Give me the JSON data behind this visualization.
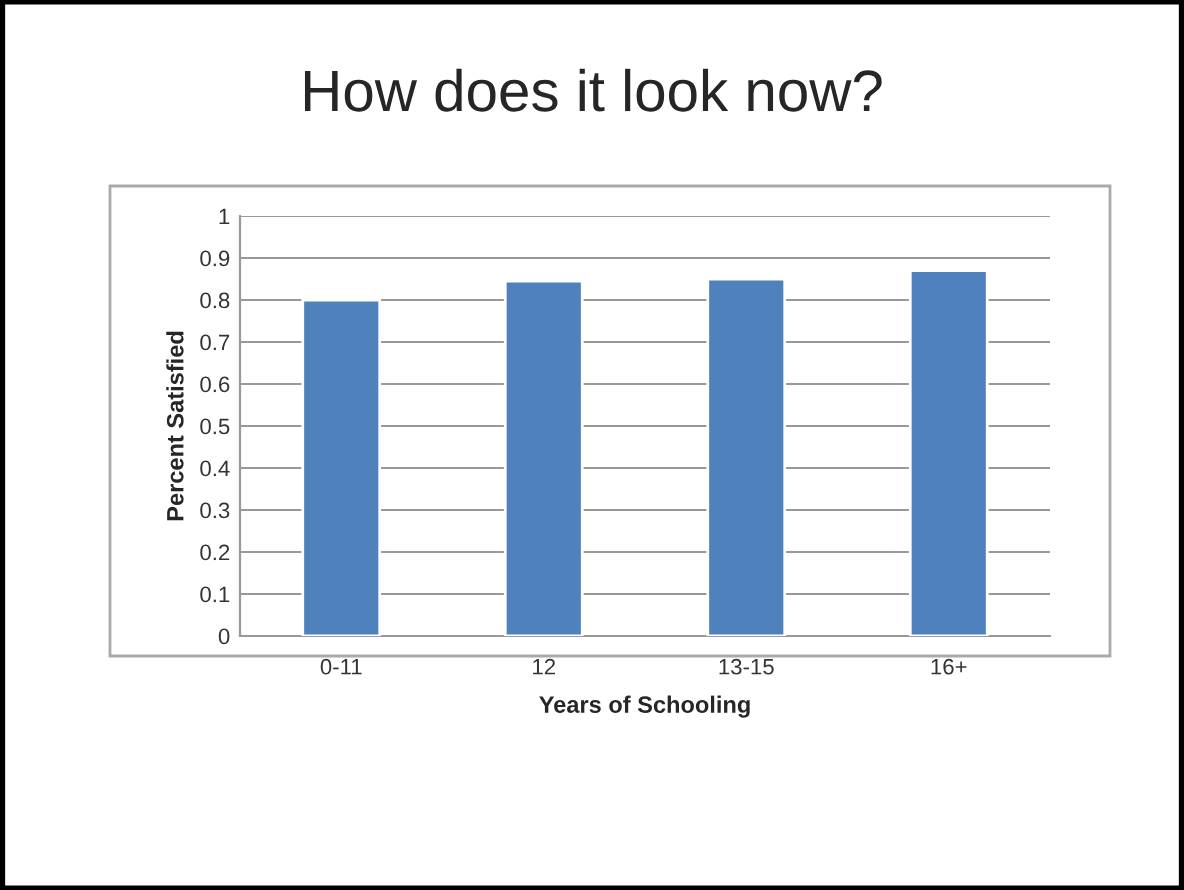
{
  "chart_data": {
    "type": "bar",
    "title": "How does it look now?",
    "xlabel": "Years of Schooling",
    "ylabel": "Percent Satisfied",
    "categories": [
      "0-11",
      "12",
      "13-15",
      "16+"
    ],
    "values": [
      0.8,
      0.845,
      0.85,
      0.87
    ],
    "color": "#4f81bd",
    "ylim": [
      0,
      1
    ],
    "yticks": [
      0,
      0.1,
      0.2,
      0.3,
      0.4,
      0.5,
      0.6,
      0.7,
      0.8,
      0.9,
      1
    ],
    "grid": "y",
    "legend": false
  }
}
